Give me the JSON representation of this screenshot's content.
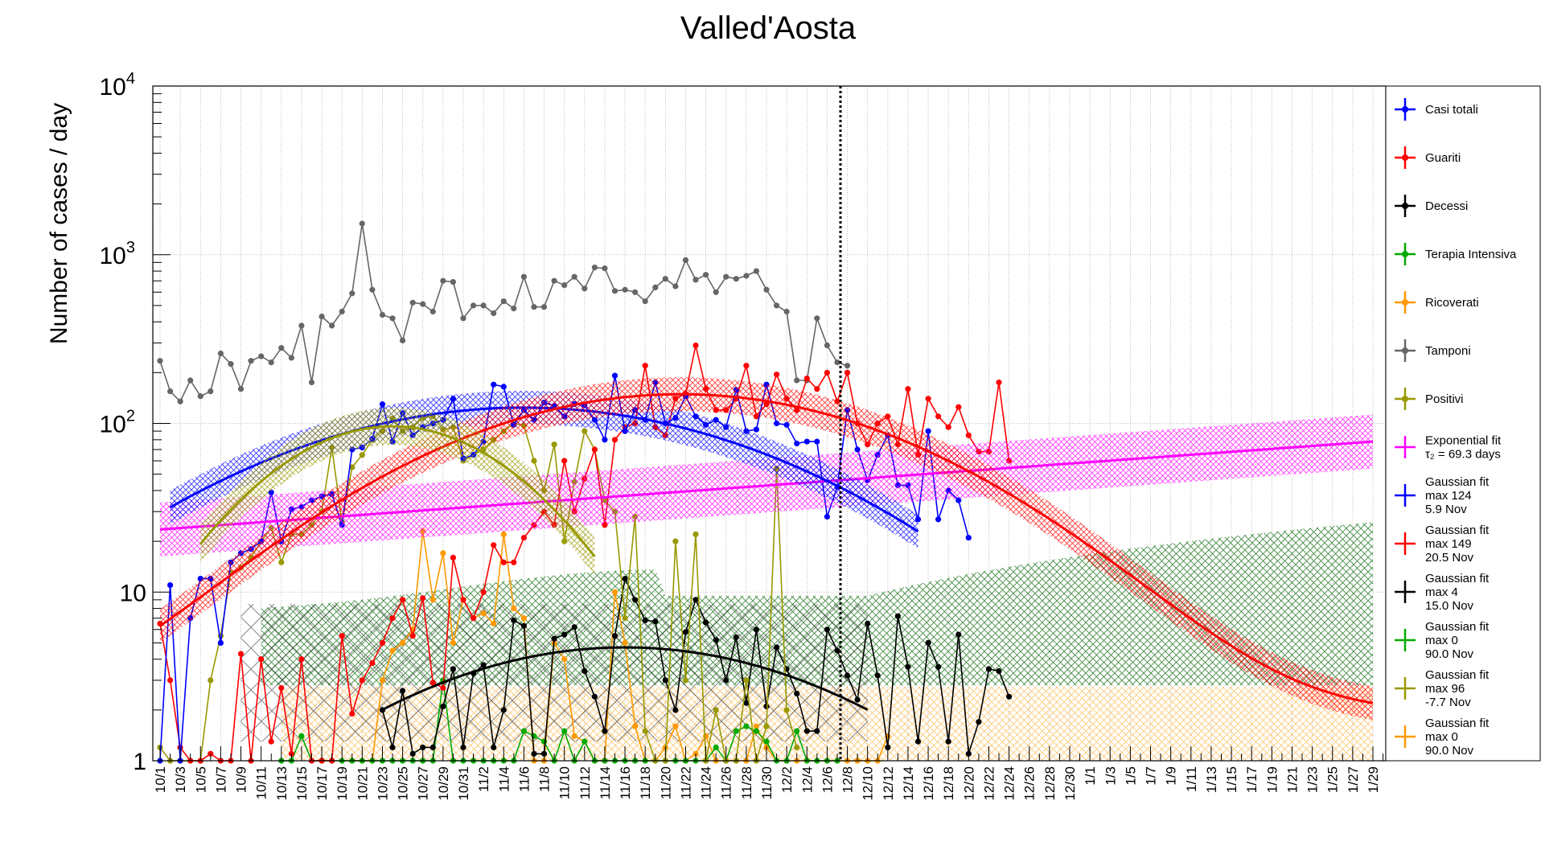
{
  "chart_data": {
    "type": "line",
    "title": "Valled'Aosta",
    "ylabel": "Number of cases / day",
    "xlabel": "",
    "y_scale": "log",
    "ylim": [
      1,
      10000
    ],
    "y_tick_labels": [
      "1",
      "10",
      "10^2",
      "10^3",
      "10^4"
    ],
    "x_range_dates": [
      "2020-10-01",
      "2021-01-31"
    ],
    "x_tick_labels": [
      "10/1",
      "10/3",
      "10/5",
      "10/7",
      "10/9",
      "10/11",
      "10/13",
      "10/15",
      "10/17",
      "10/19",
      "10/21",
      "10/23",
      "10/25",
      "10/27",
      "10/29",
      "10/31",
      "11/2",
      "11/4",
      "11/6",
      "11/8",
      "11/10",
      "11/12",
      "11/14",
      "11/16",
      "11/18",
      "11/20",
      "11/22",
      "11/24",
      "11/26",
      "11/28",
      "11/30",
      "12/2",
      "12/4",
      "12/6",
      "12/8",
      "12/10",
      "12/12",
      "12/14",
      "12/16",
      "12/18",
      "12/20",
      "12/22",
      "12/24",
      "12/26",
      "12/28",
      "12/30",
      "1/1",
      "1/3",
      "1/5",
      "1/7",
      "1/9",
      "1/11",
      "1/13",
      "1/15",
      "1/17",
      "1/19",
      "1/21",
      "1/23",
      "1/25",
      "1/27",
      "1/29"
    ],
    "vertical_marker_date": "2020-12-07",
    "grid": true,
    "legend_position": "right",
    "series": [
      {
        "name": "Casi totali",
        "color": "#0000ff",
        "start_date": "2020-10-01",
        "values": [
          1,
          11,
          1,
          7,
          12,
          12,
          5,
          15,
          17,
          18,
          20,
          39,
          20,
          31,
          32,
          35,
          37,
          38,
          25,
          70,
          72,
          81,
          130,
          78,
          115,
          85,
          95,
          100,
          105,
          140,
          62,
          65,
          78,
          170,
          165,
          98,
          120,
          105,
          133,
          127,
          110,
          130,
          128,
          105,
          80,
          192,
          90,
          120,
          105,
          175,
          100,
          108,
          145,
          110,
          98,
          105,
          95,
          158,
          90,
          92,
          170,
          100,
          98,
          76,
          78,
          78,
          28,
          42,
          120,
          70,
          46,
          65,
          85,
          43,
          43,
          27,
          90,
          27,
          40,
          35,
          21
        ]
      },
      {
        "name": "Guariti",
        "color": "#ff0000",
        "start_date": "2020-10-01",
        "values": [
          6.5,
          3,
          1.2,
          1,
          1,
          1.1,
          1,
          1,
          4.3,
          1,
          4,
          1.3,
          2.7,
          1.1,
          4,
          1,
          1,
          1,
          5.5,
          1.9,
          3,
          3.8,
          5,
          7,
          9,
          5.5,
          9.2,
          2.9,
          2.7,
          16,
          9,
          7,
          10,
          19,
          15,
          15,
          21,
          25,
          30,
          25,
          60,
          30,
          47,
          70,
          25,
          80,
          95,
          100,
          220,
          95,
          85,
          140,
          150,
          290,
          160,
          120,
          120,
          140,
          220,
          110,
          130,
          195,
          140,
          120,
          185,
          160,
          200,
          135,
          200,
          100,
          75,
          100,
          110,
          75,
          160,
          65,
          140,
          110,
          95,
          125,
          85,
          68,
          68,
          175,
          60
        ]
      },
      {
        "name": "Decessi",
        "color": "#000000",
        "start_date": "2020-10-23",
        "values": [
          2,
          1.2,
          2.6,
          1.1,
          1.2,
          1.2,
          2.1,
          3.5,
          1.2,
          3.3,
          3.7,
          1.2,
          2,
          6.8,
          6.3,
          1.1,
          1.1,
          5.3,
          5.6,
          6.2,
          3.4,
          2.4,
          1.5,
          5.5,
          12,
          9,
          6.8,
          6.7,
          3,
          2,
          5.8,
          9,
          6.6,
          5.2,
          3,
          5.4,
          2.2,
          6,
          2.1,
          4.7,
          3.5,
          2.5,
          1.5,
          1.5,
          6,
          4.5,
          3.2,
          2.3,
          6.5,
          3.2,
          1.2,
          7.2,
          3.6,
          1.3,
          5,
          3.6,
          1.3,
          5.6,
          1.1,
          1.7,
          3.5,
          3.4,
          2.4
        ]
      },
      {
        "name": "Terapia Intensiva",
        "color": "#00aa00",
        "start_date": "2020-10-13",
        "values": [
          1,
          1,
          1.4,
          1,
          1,
          1,
          1,
          1,
          1,
          1,
          1,
          1,
          1,
          1,
          1,
          1,
          3,
          1,
          1,
          1,
          1,
          1,
          1,
          1,
          1.5,
          1.4,
          1.3,
          1,
          1.5,
          1,
          1.3,
          1,
          1,
          1,
          1,
          1,
          1,
          1,
          1,
          1,
          1,
          1,
          1,
          1.2,
          1,
          1.5,
          1.6,
          1.5,
          1.3,
          1,
          1,
          1.5,
          1,
          1,
          1,
          1
        ]
      },
      {
        "name": "Ricoverati",
        "color": "#ff9900",
        "start_date": "2020-10-20",
        "values": [
          1,
          1,
          1,
          3,
          4.5,
          5,
          6,
          23,
          9,
          17,
          5,
          9,
          7,
          7.5,
          6.5,
          22,
          8,
          7,
          1,
          1,
          5,
          4,
          1.4,
          1.3,
          1,
          1,
          10,
          5,
          1.6,
          1,
          1,
          1.2,
          1.6,
          1,
          1.1,
          1.4,
          1,
          1,
          1,
          1,
          1.6,
          1.2,
          1,
          1,
          1,
          1,
          1,
          1,
          1,
          1,
          1,
          1,
          1,
          1.4
        ]
      },
      {
        "name": "Tamponi",
        "color": "#666666",
        "start_date": "2020-10-01",
        "values": [
          235,
          155,
          135,
          180,
          145,
          155,
          260,
          225,
          160,
          235,
          250,
          230,
          280,
          245,
          380,
          175,
          430,
          380,
          460,
          590,
          1530,
          620,
          440,
          420,
          310,
          520,
          510,
          460,
          700,
          690,
          420,
          500,
          500,
          450,
          530,
          480,
          740,
          490,
          490,
          700,
          660,
          740,
          630,
          840,
          830,
          610,
          620,
          600,
          530,
          640,
          720,
          650,
          930,
          710,
          760,
          600,
          740,
          720,
          750,
          800,
          620,
          500,
          460,
          180,
          180,
          420,
          290,
          230,
          220
        ]
      },
      {
        "name": "Positivi",
        "color": "#999900",
        "start_date": "2020-10-01",
        "values": [
          1.2,
          1,
          1,
          1,
          1,
          3,
          5.5,
          13,
          14,
          16,
          20,
          24,
          15,
          22,
          22,
          25,
          30,
          72,
          26,
          55,
          65,
          80,
          90,
          107,
          90,
          95,
          108,
          110,
          92,
          95,
          60,
          65,
          70,
          80,
          90,
          100,
          97,
          60,
          40,
          75,
          20,
          45,
          90,
          70,
          35,
          30,
          7,
          28,
          1.5,
          1,
          1,
          20,
          3,
          22,
          1,
          2,
          1,
          1,
          3,
          1,
          1.6,
          54,
          2,
          1.2
        ]
      }
    ],
    "fits": [
      {
        "name": "Exponential fit",
        "label": "τ2 = 69.3 days",
        "color": "#ff00ff",
        "tau2_days": 69.3
      },
      {
        "name": "Gaussian fit",
        "max": 124,
        "peak": "5.9 Nov",
        "color": "#0000ff"
      },
      {
        "name": "Gaussian fit",
        "max": 149,
        "peak": "20.5 Nov",
        "color": "#ff0000"
      },
      {
        "name": "Gaussian fit",
        "max": 4,
        "peak": "15.0 Nov",
        "color": "#000000"
      },
      {
        "name": "Gaussian fit",
        "max": 0,
        "peak": "90.0 Nov",
        "color": "#00aa00"
      },
      {
        "name": "Gaussian fit",
        "max": 96,
        "peak": "-7.7 Nov",
        "color": "#999900"
      },
      {
        "name": "Gaussian fit",
        "max": 0,
        "peak": "90.0 Nov",
        "color": "#ff9900"
      }
    ]
  },
  "legend": {
    "entries": [
      {
        "type": "data",
        "lines": [
          "Casi totali"
        ],
        "color": "#0000ff"
      },
      {
        "type": "data",
        "lines": [
          "Guariti"
        ],
        "color": "#ff0000"
      },
      {
        "type": "data",
        "lines": [
          "Decessi"
        ],
        "color": "#000000"
      },
      {
        "type": "data",
        "lines": [
          "Terapia Intensiva"
        ],
        "color": "#00aa00"
      },
      {
        "type": "data",
        "lines": [
          "Ricoverati"
        ],
        "color": "#ff9900"
      },
      {
        "type": "data",
        "lines": [
          "Tamponi"
        ],
        "color": "#666666"
      },
      {
        "type": "data",
        "lines": [
          "Positivi"
        ],
        "color": "#999900"
      },
      {
        "type": "fit",
        "lines": [
          "Exponential fit",
          "τ₂ = 69.3 days"
        ],
        "color": "#ff00ff"
      },
      {
        "type": "fit",
        "lines": [
          "Gaussian fit",
          "max 124",
          " 5.9 Nov"
        ],
        "color": "#0000ff"
      },
      {
        "type": "fit",
        "lines": [
          "Gaussian fit",
          "max 149",
          " 20.5 Nov"
        ],
        "color": "#ff0000"
      },
      {
        "type": "fit",
        "lines": [
          "Gaussian fit",
          "max 4",
          " 15.0 Nov"
        ],
        "color": "#000000"
      },
      {
        "type": "fit",
        "lines": [
          "Gaussian fit",
          "max 0",
          " 90.0 Nov"
        ],
        "color": "#00aa00"
      },
      {
        "type": "fit",
        "lines": [
          "Gaussian fit",
          "max 96",
          " -7.7 Nov"
        ],
        "color": "#999900"
      },
      {
        "type": "fit",
        "lines": [
          "Gaussian fit",
          "max 0",
          " 90.0 Nov"
        ],
        "color": "#ff9900"
      }
    ]
  }
}
